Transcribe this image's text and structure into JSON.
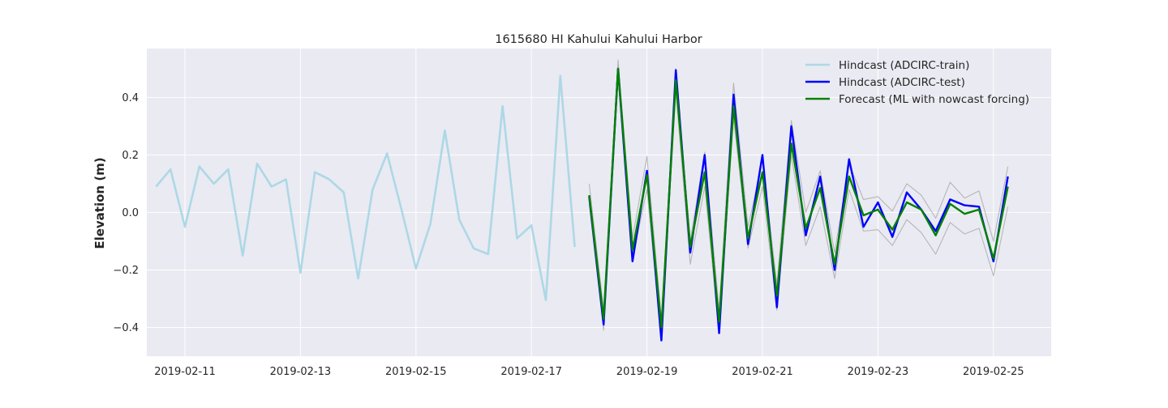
{
  "chart_data": {
    "type": "line",
    "title": "1615680 HI Kahului Kahului Harbor",
    "xlabel": "",
    "ylabel": "Elevation (m)",
    "xlim": [
      "2019-02-10T08:10",
      "2019-02-26T00:00"
    ],
    "ylim": [
      -0.5,
      0.57
    ],
    "grid": true,
    "legend_position": "top-right",
    "x_ticks": [
      "2019-02-11",
      "2019-02-13",
      "2019-02-15",
      "2019-02-17",
      "2019-02-19",
      "2019-02-21",
      "2019-02-23",
      "2019-02-25"
    ],
    "y_ticks": [
      -0.4,
      -0.2,
      0.0,
      0.2,
      0.4
    ],
    "y_tick_labels": [
      "−0.4",
      "−0.2",
      "0.0",
      "0.2",
      "0.4"
    ],
    "colors": {
      "background": "#eaeaf2",
      "grid": "#ffffff",
      "train": "#add8e6",
      "test": "#0000ff",
      "forecast": "#008000",
      "band": "#a9a9a9"
    },
    "legend": [
      {
        "label": "Hindcast (ADCIRC-train)",
        "color": "#add8e6"
      },
      {
        "label": "Hindcast (ADCIRC-test)",
        "color": "#0000ff"
      },
      {
        "label": "Forecast (ML with nowcast forcing)",
        "color": "#008000"
      }
    ],
    "series": [
      {
        "name": "Hindcast (ADCIRC-train)",
        "color": "#add8e6",
        "x": [
          "2019-02-10T12:00",
          "2019-02-10T18:00",
          "2019-02-11T00:00",
          "2019-02-11T06:00",
          "2019-02-11T12:00",
          "2019-02-11T18:00",
          "2019-02-12T00:00",
          "2019-02-12T06:00",
          "2019-02-12T12:00",
          "2019-02-12T18:00",
          "2019-02-13T00:00",
          "2019-02-13T06:00",
          "2019-02-13T12:00",
          "2019-02-13T18:00",
          "2019-02-14T00:00",
          "2019-02-14T06:00",
          "2019-02-14T12:00",
          "2019-02-14T18:00",
          "2019-02-15T00:00",
          "2019-02-15T06:00",
          "2019-02-15T12:00",
          "2019-02-15T18:00",
          "2019-02-16T00:00",
          "2019-02-16T06:00",
          "2019-02-16T12:00",
          "2019-02-16T18:00",
          "2019-02-17T00:00",
          "2019-02-17T06:00",
          "2019-02-17T12:00",
          "2019-02-17T18:00"
        ],
        "y": [
          0.09,
          0.15,
          -0.05,
          0.16,
          0.1,
          0.15,
          -0.15,
          0.17,
          0.09,
          0.115,
          -0.21,
          0.14,
          0.115,
          0.07,
          -0.23,
          0.08,
          0.205,
          0.01,
          -0.195,
          -0.04,
          0.285,
          -0.025,
          -0.125,
          -0.145,
          0.37,
          -0.09,
          -0.045,
          -0.305,
          0.475,
          -0.12
        ]
      },
      {
        "name": "Hindcast (ADCIRC-test)",
        "color": "#0000ff",
        "x": [
          "2019-02-18T00:00",
          "2019-02-18T06:00",
          "2019-02-18T12:00",
          "2019-02-18T18:00",
          "2019-02-19T00:00",
          "2019-02-19T06:00",
          "2019-02-19T12:00",
          "2019-02-19T18:00",
          "2019-02-20T00:00",
          "2019-02-20T06:00",
          "2019-02-20T12:00",
          "2019-02-20T18:00",
          "2019-02-21T00:00",
          "2019-02-21T06:00",
          "2019-02-21T12:00",
          "2019-02-21T18:00",
          "2019-02-22T00:00",
          "2019-02-22T06:00",
          "2019-02-22T12:00",
          "2019-02-22T18:00",
          "2019-02-23T00:00",
          "2019-02-23T06:00",
          "2019-02-23T12:00",
          "2019-02-23T18:00",
          "2019-02-24T00:00",
          "2019-02-24T06:00",
          "2019-02-24T12:00",
          "2019-02-24T18:00",
          "2019-02-25T00:00",
          "2019-02-25T06:00"
        ],
        "y": [
          0.055,
          -0.39,
          0.5,
          -0.17,
          0.145,
          -0.445,
          0.495,
          -0.14,
          0.2,
          -0.42,
          0.41,
          -0.11,
          0.2,
          -0.33,
          0.3,
          -0.08,
          0.125,
          -0.2,
          0.185,
          -0.05,
          0.035,
          -0.085,
          0.07,
          0.01,
          -0.065,
          0.045,
          0.025,
          0.02,
          -0.17,
          0.125
        ]
      },
      {
        "name": "Forecast (ML with nowcast forcing)",
        "color": "#008000",
        "x": [
          "2019-02-18T00:00",
          "2019-02-18T06:00",
          "2019-02-18T12:00",
          "2019-02-18T18:00",
          "2019-02-19T00:00",
          "2019-02-19T06:00",
          "2019-02-19T12:00",
          "2019-02-19T18:00",
          "2019-02-20T00:00",
          "2019-02-20T06:00",
          "2019-02-20T12:00",
          "2019-02-20T18:00",
          "2019-02-21T00:00",
          "2019-02-21T06:00",
          "2019-02-21T12:00",
          "2019-02-21T18:00",
          "2019-02-22T00:00",
          "2019-02-22T06:00",
          "2019-02-22T12:00",
          "2019-02-22T18:00",
          "2019-02-23T00:00",
          "2019-02-23T06:00",
          "2019-02-23T12:00",
          "2019-02-23T18:00",
          "2019-02-24T00:00",
          "2019-02-24T06:00",
          "2019-02-24T12:00",
          "2019-02-24T18:00",
          "2019-02-25T00:00",
          "2019-02-25T06:00"
        ],
        "y": [
          0.06,
          -0.37,
          0.5,
          -0.13,
          0.13,
          -0.4,
          0.46,
          -0.12,
          0.14,
          -0.38,
          0.37,
          -0.09,
          0.14,
          -0.29,
          0.24,
          -0.055,
          0.085,
          -0.18,
          0.125,
          -0.01,
          0.01,
          -0.06,
          0.035,
          0.01,
          -0.08,
          0.03,
          -0.005,
          0.01,
          -0.16,
          0.09
        ]
      },
      {
        "name": "",
        "color": "#a9a9a9",
        "x": [
          "2019-02-18T00:00",
          "2019-02-18T06:00",
          "2019-02-18T12:00",
          "2019-02-18T18:00",
          "2019-02-19T00:00",
          "2019-02-19T06:00",
          "2019-02-19T12:00",
          "2019-02-19T18:00",
          "2019-02-20T00:00",
          "2019-02-20T06:00",
          "2019-02-20T12:00",
          "2019-02-20T18:00",
          "2019-02-21T00:00",
          "2019-02-21T06:00",
          "2019-02-21T12:00",
          "2019-02-21T18:00",
          "2019-02-22T00:00",
          "2019-02-22T06:00",
          "2019-02-22T12:00",
          "2019-02-22T18:00",
          "2019-02-23T00:00",
          "2019-02-23T06:00",
          "2019-02-23T12:00",
          "2019-02-23T18:00",
          "2019-02-24T00:00",
          "2019-02-24T06:00",
          "2019-02-24T12:00",
          "2019-02-24T18:00",
          "2019-02-25T00:00",
          "2019-02-25T06:00"
        ],
        "y": [
          0.1,
          -0.34,
          0.53,
          -0.09,
          0.195,
          -0.37,
          0.5,
          -0.1,
          0.21,
          -0.34,
          0.45,
          -0.05,
          0.18,
          -0.25,
          0.32,
          0.0,
          0.145,
          -0.14,
          0.17,
          0.045,
          0.055,
          0.005,
          0.1,
          0.06,
          -0.02,
          0.105,
          0.05,
          0.075,
          -0.1,
          0.16
        ]
      },
      {
        "name": "",
        "color": "#a9a9a9",
        "x": [
          "2019-02-18T00:00",
          "2019-02-18T06:00",
          "2019-02-18T12:00",
          "2019-02-18T18:00",
          "2019-02-19T00:00",
          "2019-02-19T06:00",
          "2019-02-19T12:00",
          "2019-02-19T18:00",
          "2019-02-20T00:00",
          "2019-02-20T06:00",
          "2019-02-20T12:00",
          "2019-02-20T18:00",
          "2019-02-21T00:00",
          "2019-02-21T06:00",
          "2019-02-21T12:00",
          "2019-02-21T18:00",
          "2019-02-22T00:00",
          "2019-02-22T06:00",
          "2019-02-22T12:00",
          "2019-02-22T18:00",
          "2019-02-23T00:00",
          "2019-02-23T06:00",
          "2019-02-23T12:00",
          "2019-02-23T18:00",
          "2019-02-24T00:00",
          "2019-02-24T06:00",
          "2019-02-24T12:00",
          "2019-02-24T18:00",
          "2019-02-25T00:00",
          "2019-02-25T06:00"
        ],
        "y": [
          0.03,
          -0.41,
          0.47,
          -0.16,
          0.08,
          -0.44,
          0.42,
          -0.18,
          0.09,
          -0.42,
          0.33,
          -0.125,
          0.09,
          -0.34,
          0.2,
          -0.115,
          0.02,
          -0.23,
          0.08,
          -0.065,
          -0.06,
          -0.115,
          -0.025,
          -0.07,
          -0.145,
          -0.035,
          -0.075,
          -0.055,
          -0.22,
          0.02
        ]
      }
    ]
  }
}
